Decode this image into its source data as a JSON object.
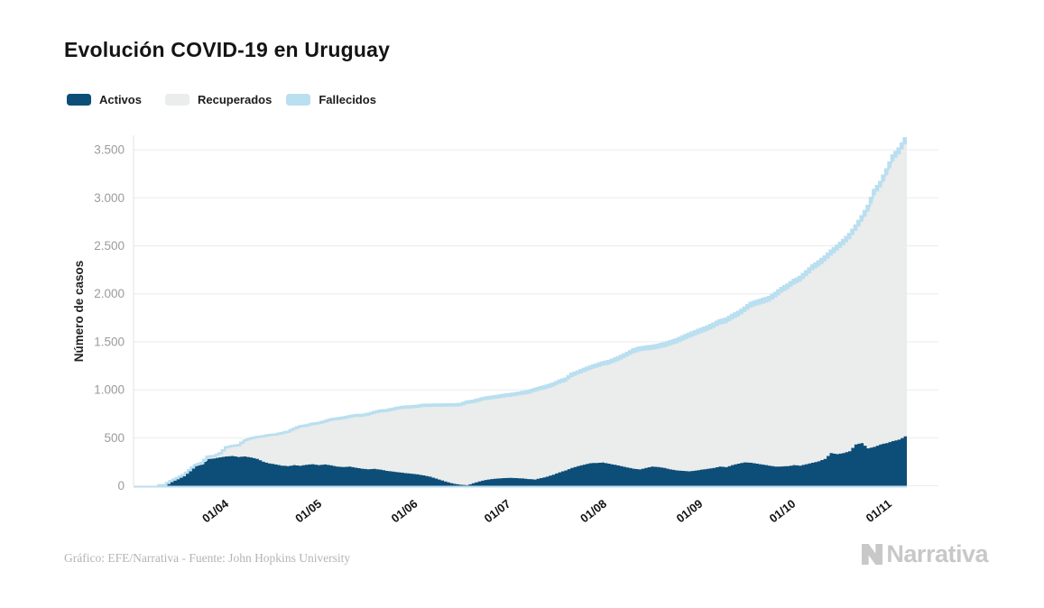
{
  "title": "Evolución COVID-19 en Uruguay",
  "legend": {
    "items": [
      {
        "label": "Activos",
        "color": "#0d4e78"
      },
      {
        "label": "Recuperados",
        "color": "#ebecec"
      },
      {
        "label": "Fallecidos",
        "color": "#b9dff0"
      }
    ]
  },
  "footer": {
    "credit": "Gráfico: EFE/Narrativa - Fuente: John Hopkins University"
  },
  "logo": {
    "text": "Narrativa"
  },
  "chart_data": {
    "type": "area",
    "stacked": true,
    "title": "Evolución COVID-19 en Uruguay",
    "ylabel": "Número de casos",
    "xlabel": "",
    "grid": "horizontal",
    "legend_position": "top-left",
    "ylim": [
      0,
      3700
    ],
    "y_ticks": [
      0,
      500,
      1000,
      1500,
      2000,
      2500,
      3000,
      3500
    ],
    "y_tick_labels": [
      "0",
      "500",
      "1.000",
      "1.500",
      "2.000",
      "2.500",
      "3.000",
      "3.500"
    ],
    "x_tick_labels": [
      "01/04",
      "01/05",
      "01/06",
      "01/07",
      "01/08",
      "01/09",
      "01/10",
      "01/11"
    ],
    "x_tick_day_index": [
      19,
      49,
      80,
      110,
      141,
      172,
      202,
      233
    ],
    "sample_interval_days": 2,
    "x_range_days": 242,
    "series": [
      {
        "name": "Activos",
        "color": "#0d4e78",
        "values": [
          4,
          8,
          49,
          77,
          106,
          155,
          205,
          220,
          278,
          284,
          296,
          305,
          310,
          300,
          305,
          295,
          280,
          250,
          232,
          222,
          210,
          205,
          215,
          208,
          218,
          225,
          215,
          222,
          212,
          200,
          195,
          200,
          188,
          178,
          172,
          176,
          168,
          155,
          148,
          140,
          132,
          126,
          118,
          108,
          95,
          75,
          55,
          35,
          20,
          10,
          6,
          25,
          45,
          60,
          70,
          75,
          80,
          82,
          80,
          76,
          70,
          65,
          80,
          95,
          115,
          140,
          160,
          185,
          205,
          220,
          235,
          238,
          242,
          230,
          218,
          205,
          190,
          178,
          170,
          185,
          200,
          195,
          185,
          170,
          160,
          155,
          150,
          158,
          168,
          176,
          186,
          200,
          194,
          215,
          230,
          243,
          240,
          230,
          220,
          210,
          200,
          201,
          205,
          215,
          210,
          225,
          240,
          255,
          280,
          340,
          330,
          340,
          360,
          430,
          445,
          390,
          405,
          430,
          445,
          465,
          480,
          515
        ]
      },
      {
        "name": "Recuperados",
        "color": "#ebecec",
        "note": "derived: total_cases - Activos - Fallecidos"
      },
      {
        "name": "Fallecidos",
        "color": "#b9dff0",
        "values": [
          0,
          0,
          0,
          0,
          0,
          0,
          0,
          0,
          1,
          1,
          2,
          4,
          5,
          6,
          7,
          7,
          9,
          10,
          10,
          11,
          12,
          12,
          14,
          15,
          16,
          17,
          17,
          18,
          18,
          19,
          19,
          20,
          20,
          20,
          21,
          21,
          21,
          22,
          22,
          22,
          23,
          23,
          23,
          24,
          24,
          24,
          24,
          24,
          25,
          25,
          25,
          26,
          26,
          27,
          27,
          28,
          28,
          29,
          29,
          30,
          30,
          31,
          31,
          32,
          32,
          33,
          33,
          34,
          34,
          35,
          35,
          36,
          36,
          37,
          38,
          38,
          39,
          40,
          40,
          41,
          42,
          42,
          43,
          44,
          44,
          45,
          45,
          45,
          46,
          46,
          46,
          47,
          47,
          47,
          47,
          48,
          48,
          48,
          48,
          49,
          49,
          50,
          50,
          50,
          51,
          51,
          51,
          52,
          52,
          53,
          53,
          54,
          54,
          55,
          56,
          57,
          57,
          58,
          59,
          60,
          61,
          62
        ]
      }
    ],
    "total_cases": [
      4,
      8,
      50,
      79,
      110,
      162,
      217,
      238,
      304,
      310,
      338,
      400,
      415,
      424,
      473,
      494,
      508,
      517,
      528,
      535,
      549,
      563,
      596,
      620,
      630,
      648,
      655,
      673,
      694,
      702,
      711,
      725,
      737,
      738,
      749,
      769,
      784,
      789,
      803,
      816,
      826,
      828,
      834,
      845,
      845,
      847,
      847,
      848,
      849,
      853,
      876,
      885,
      902,
      919,
      928,
      936,
      947,
      955,
      965,
      977,
      987,
      1009,
      1026,
      1044,
      1064,
      1096,
      1117,
      1166,
      1192,
      1218,
      1243,
      1264,
      1286,
      1300,
      1325,
      1353,
      1385,
      1421,
      1440,
      1451,
      1457,
      1470,
      1485,
      1506,
      1527,
      1556,
      1585,
      1611,
      1636,
      1660,
      1690,
      1725,
      1741,
      1780,
      1812,
      1856,
      1905,
      1927,
      1946,
      1967,
      2010,
      2061,
      2097,
      2145,
      2177,
      2234,
      2294,
      2337,
      2388,
      2450,
      2501,
      2560,
      2623,
      2711,
      2807,
      2916,
      3082,
      3165,
      3296,
      3441,
      3514,
      3620
    ]
  }
}
